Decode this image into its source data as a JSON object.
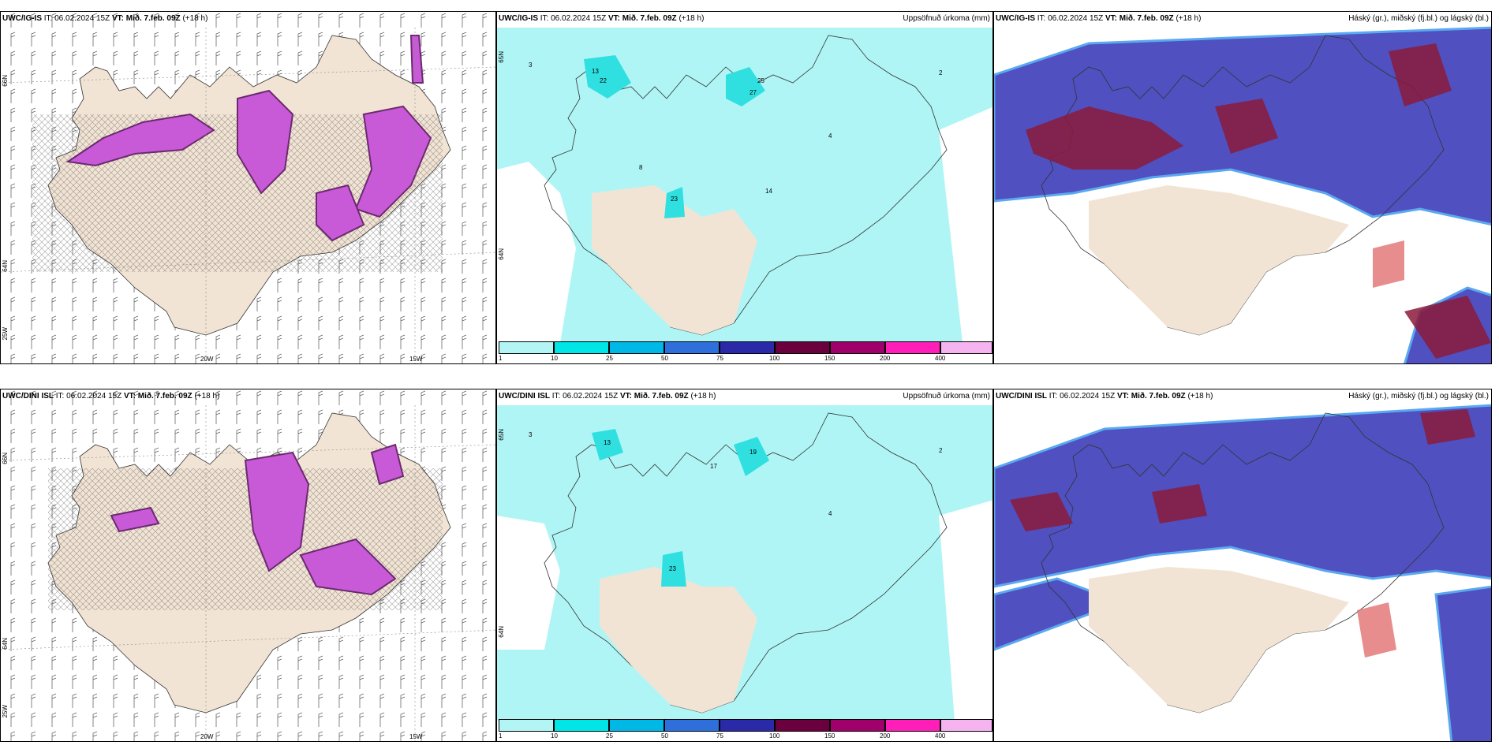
{
  "rows": [
    {
      "model": "UWC/IG-IS",
      "it_prefix": "IT:",
      "it_value": "06.02.2024 15Z",
      "vt_label": "VT: Mið. 7.feb. 09Z",
      "lead": "(+18 h)"
    },
    {
      "model": "UWC/DINI ISL",
      "it_prefix": "IT:",
      "it_value": "06.02.2024 15Z",
      "vt_label": "VT: Mið. 7.feb. 09Z",
      "lead": "(+18 h)"
    }
  ],
  "precip_title": "Uppsöfnuð úrkoma (mm)",
  "cloud_title": "Háský (gr.), miðský (fj.bl.) og lágský (bl.)",
  "lon_labels": [
    "20W",
    "15W"
  ],
  "lat_labels": [
    "66N",
    "64N",
    "25W"
  ],
  "precip_lat_labels": [
    "65N",
    "64N"
  ],
  "colorbar": {
    "ticks": [
      "1",
      "10",
      "25",
      "50",
      "75",
      "100",
      "150",
      "200",
      "400"
    ],
    "colors": [
      "#b3f5f5",
      "#00e5e5",
      "#00b8e6",
      "#2f6fdc",
      "#2a2aa8",
      "#6b003f",
      "#a0006a",
      "#ff1fb8",
      "#f5b3f0"
    ]
  },
  "colors": {
    "land": "#f2e4d4",
    "precip_light": "#b0f5f5",
    "precip_mid": "#30e0e0",
    "snow": "#c85ad8",
    "snow_dark": "#6b2a6e",
    "cloud_high": "#5050c0",
    "cloud_mid": "#8b1a3a",
    "cloud_low_edge": "#5aa8f0"
  }
}
